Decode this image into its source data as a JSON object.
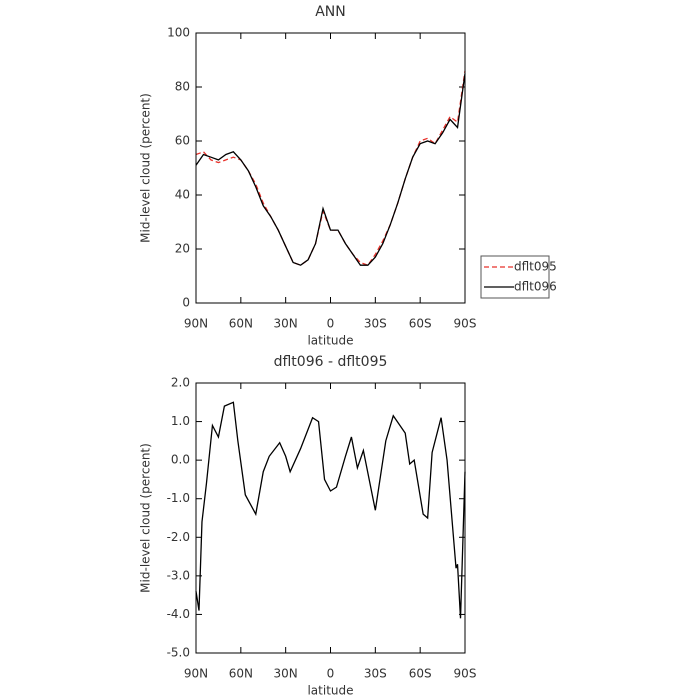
{
  "chart_data": [
    {
      "type": "line",
      "title": "ANN",
      "xlabel": "latitude",
      "ylabel": "Mid-level cloud (percent)",
      "x": [
        90,
        85,
        80,
        75,
        70,
        65,
        60,
        55,
        50,
        45,
        40,
        35,
        30,
        25,
        20,
        15,
        10,
        5,
        0,
        -5,
        -10,
        -15,
        -20,
        -25,
        -30,
        -35,
        -40,
        -45,
        -50,
        -55,
        -60,
        -65,
        -70,
        -75,
        -80,
        -85,
        -90
      ],
      "series": [
        {
          "name": "dflt095",
          "color": "#e8312a",
          "dash": true,
          "values": [
            55,
            56,
            53,
            52,
            53,
            54,
            53,
            49,
            44,
            37,
            32,
            27,
            21,
            15,
            14,
            16,
            22,
            34,
            27,
            27,
            22,
            18,
            15,
            14,
            18,
            23,
            29,
            37,
            46,
            54,
            60,
            61,
            59,
            64,
            69,
            67,
            86
          ]
        },
        {
          "name": "dflt096",
          "color": "#000000",
          "dash": false,
          "values": [
            51,
            55,
            54,
            53,
            55,
            56,
            53,
            49,
            43,
            36,
            32,
            27,
            21,
            15,
            14,
            16,
            22,
            35,
            27,
            27,
            22,
            18,
            14,
            14,
            17,
            22,
            29,
            37,
            46,
            54,
            59,
            60,
            59,
            63,
            68,
            65,
            85
          ]
        }
      ],
      "xlim": [
        90,
        -90
      ],
      "xticks": [
        {
          "value": 90,
          "label": "90N"
        },
        {
          "value": 60,
          "label": "60N"
        },
        {
          "value": 30,
          "label": "30N"
        },
        0,
        {
          "value": -30,
          "label": "30S"
        },
        {
          "value": -60,
          "label": "60S"
        },
        {
          "value": -90,
          "label": "90S"
        }
      ],
      "ylim": [
        0,
        100
      ],
      "yticks": [
        0,
        20,
        40,
        60,
        80,
        100
      ],
      "legend": "right"
    },
    {
      "type": "line",
      "title": "dflt096 - dflt095",
      "xlabel": "latitude",
      "ylabel": "Mid-level cloud (percent)",
      "x": [
        90,
        88,
        86,
        83,
        79,
        75,
        71,
        65,
        62,
        57,
        50,
        45,
        41,
        34,
        30,
        27,
        20,
        12,
        8,
        4,
        0,
        -4,
        -10,
        -14,
        -18,
        -22,
        -30,
        -37,
        -42,
        -50,
        -53,
        -56,
        -62,
        -65,
        -68,
        -74,
        -78,
        -84,
        -85,
        -87,
        -90
      ],
      "series": [
        {
          "name": "dflt096 - dflt095",
          "color": "#000000",
          "dash": false,
          "values": [
            -3.4,
            -3.9,
            -1.6,
            -0.6,
            0.9,
            0.6,
            1.4,
            1.5,
            0.5,
            -0.9,
            -1.4,
            -0.3,
            0.1,
            0.45,
            0.1,
            -0.3,
            0.3,
            1.1,
            1.0,
            -0.5,
            -0.8,
            -0.7,
            0.1,
            0.6,
            -0.2,
            0.25,
            -1.3,
            0.5,
            1.15,
            0.7,
            -0.1,
            0.0,
            -1.4,
            -1.5,
            0.2,
            1.1,
            0.0,
            -2.8,
            -2.7,
            -4.1,
            -0.3
          ]
        }
      ],
      "xlim": [
        90,
        -90
      ],
      "xticks": [
        {
          "value": 90,
          "label": "90N"
        },
        {
          "value": 60,
          "label": "60N"
        },
        {
          "value": 30,
          "label": "30N"
        },
        0,
        {
          "value": -30,
          "label": "30S"
        },
        {
          "value": -60,
          "label": "60S"
        },
        {
          "value": -90,
          "label": "90S"
        }
      ],
      "ylim": [
        -5,
        2
      ],
      "yticks": [
        {
          "value": -5,
          "label": "-5.0"
        },
        {
          "value": -4,
          "label": "-4.0"
        },
        {
          "value": -3,
          "label": "-3.0"
        },
        {
          "value": -2,
          "label": "-2.0"
        },
        {
          "value": -1,
          "label": "-1.0"
        },
        {
          "value": 0,
          "label": "0.0"
        },
        {
          "value": 1,
          "label": "1.0"
        },
        {
          "value": 2,
          "label": "2.0"
        }
      ]
    }
  ]
}
